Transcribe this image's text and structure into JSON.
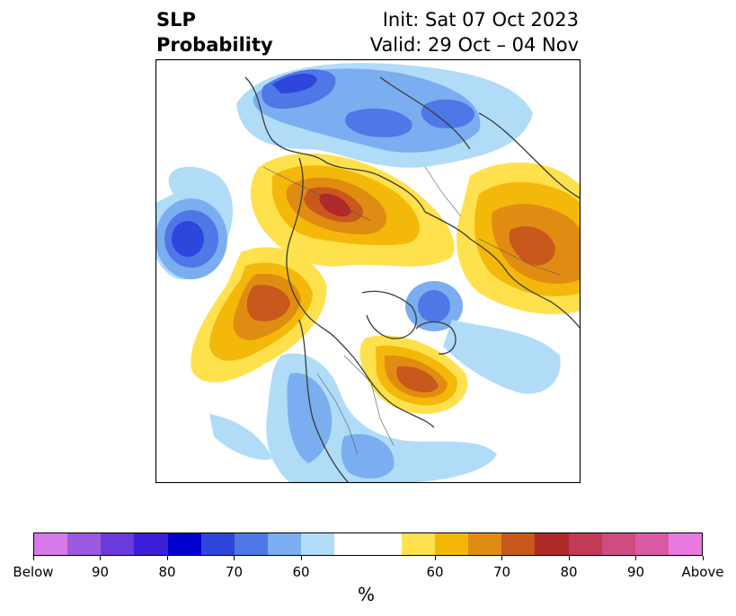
{
  "title": {
    "left_line1": "SLP",
    "left_line2": "Probability",
    "right_line1": "Init: Sat 07 Oct 2023",
    "right_line2": "Valid: 29 Oct – 04 Nov"
  },
  "map": {
    "projection": "north polar stereographic",
    "field": "SLP probability (above/below normal)"
  },
  "colorbar": {
    "unit": "%",
    "colors": [
      "#d57ae8",
      "#9b59e0",
      "#6a3bdc",
      "#3b1fd8",
      "#0000cc",
      "#2e46dc",
      "#4f77e6",
      "#7aaef0",
      "#b0dcf8",
      "#ffffff",
      "#ffffff",
      "#ffe14d",
      "#f3b80a",
      "#e08c12",
      "#c9581c",
      "#b12828",
      "#c23a55",
      "#cf4c80",
      "#db5aa6",
      "#e87ae0"
    ],
    "tick_labels": [
      "Below",
      "90",
      "80",
      "70",
      "60",
      "60",
      "70",
      "80",
      "90",
      "Above"
    ]
  }
}
